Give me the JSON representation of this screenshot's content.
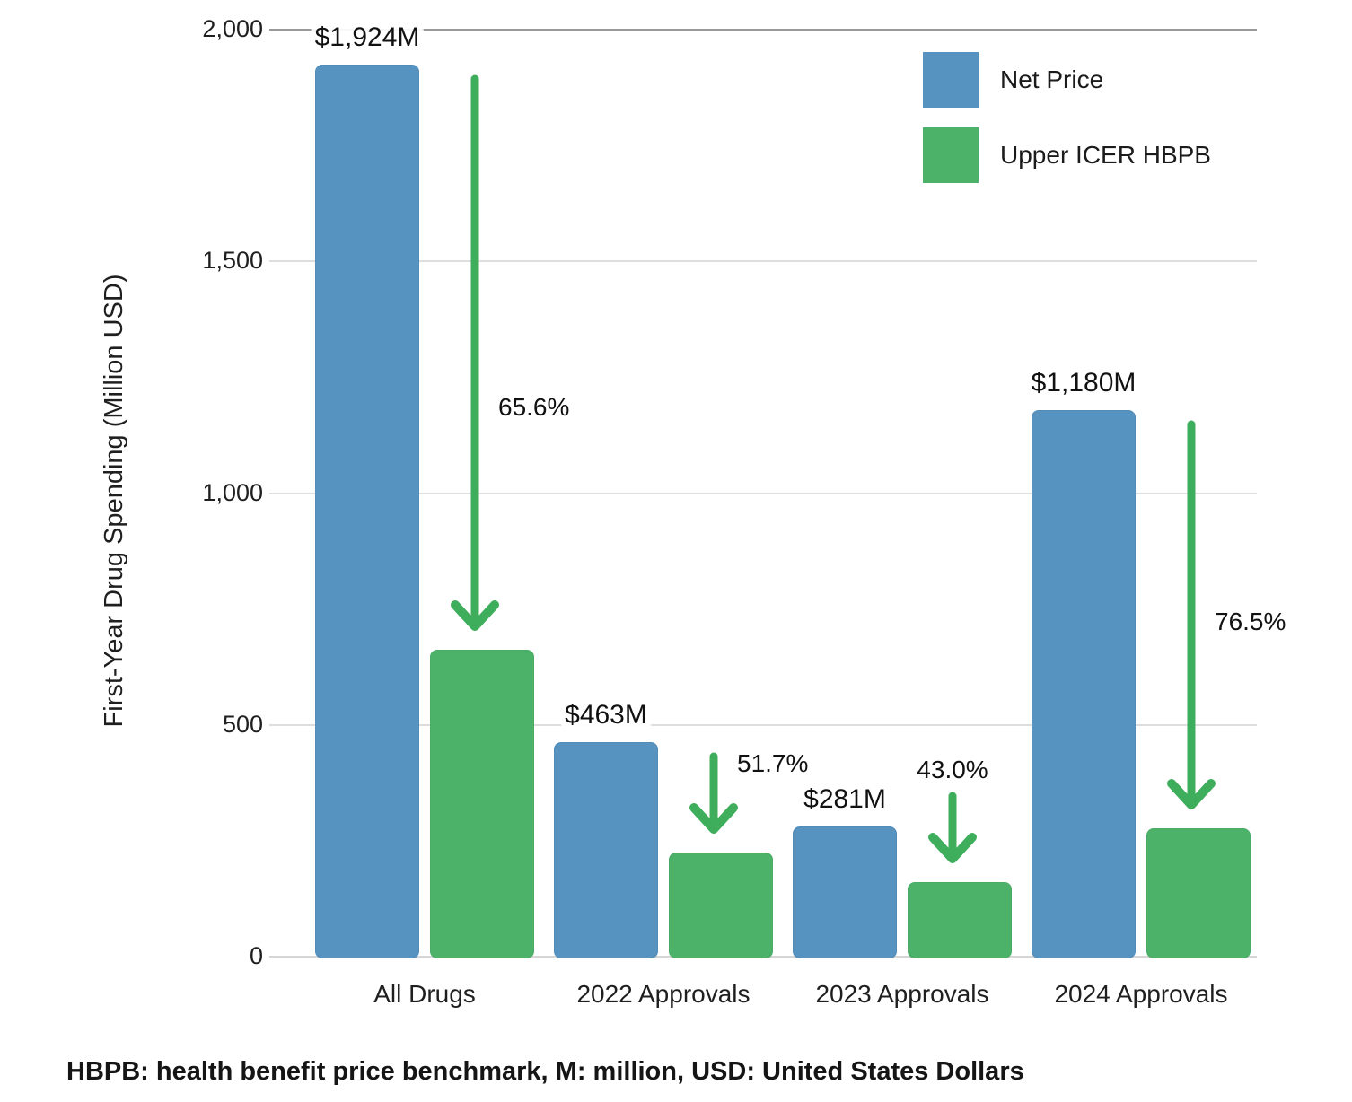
{
  "chart_data": {
    "type": "bar",
    "title": "",
    "categories": [
      "All Drugs",
      "2022 Approvals",
      "2023 Approvals",
      "2024 Approvals"
    ],
    "series": [
      {
        "name": "Net Price",
        "color": "#5793C1",
        "values": [
          1924,
          463,
          281,
          1180
        ],
        "bar_labels": [
          "$1,924M",
          "$463M",
          "$281M",
          "$1,180M"
        ]
      },
      {
        "name": "Upper ICER HBPB",
        "color": "#4CB269",
        "values": [
          662,
          224,
          160,
          277
        ],
        "bar_labels": [
          null,
          null,
          null,
          null
        ]
      }
    ],
    "reduction_annotations": [
      "65.6%",
      "51.7%",
      "43.0%",
      "76.5%"
    ],
    "arrow_color": "#3FAE5C",
    "xlabel": "",
    "ylabel": "First-Year Drug Spending (Million USD)",
    "ylim": [
      0,
      2000
    ],
    "yticks": [
      {
        "value": 0,
        "label": "0"
      },
      {
        "value": 500,
        "label": "500"
      },
      {
        "value": 1000,
        "label": "1,000"
      },
      {
        "value": 1500,
        "label": "1,500"
      },
      {
        "value": 2000,
        "label": "2,000"
      }
    ],
    "grid": true,
    "legend_position": "top-right"
  },
  "footnote": "HBPB: health benefit price benchmark, M: million, USD: United States Dollars"
}
